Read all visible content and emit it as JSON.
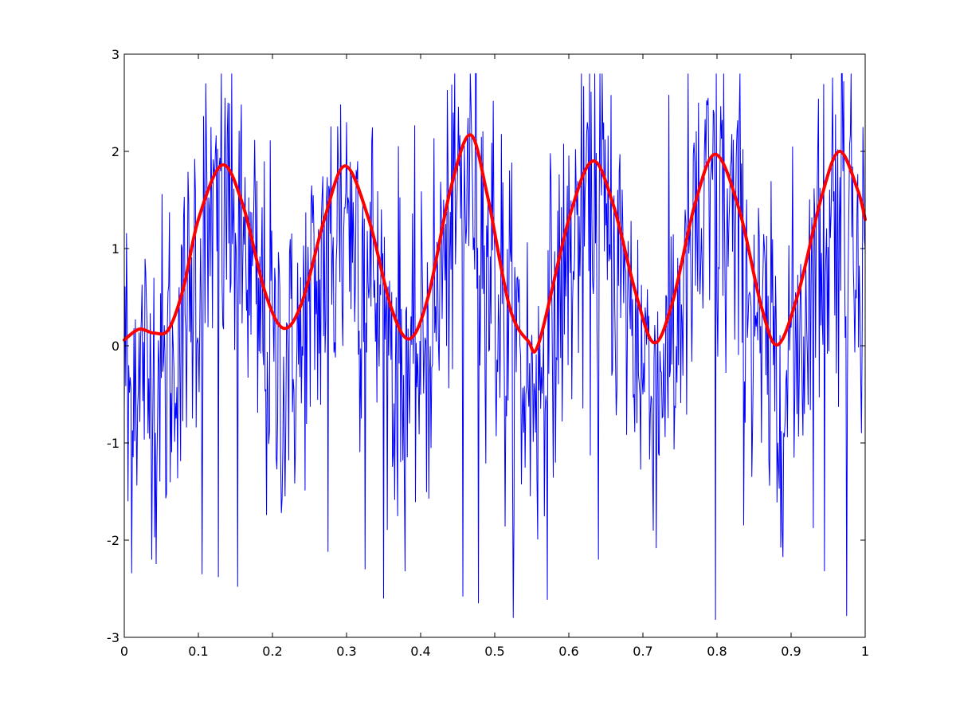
{
  "chart_data": {
    "type": "line",
    "title": "",
    "xlabel": "",
    "ylabel": "",
    "xlim": [
      0,
      1
    ],
    "ylim": [
      -3,
      3
    ],
    "x_ticks": [
      "0",
      "0.1",
      "0.2",
      "0.3",
      "0.4",
      "0.5",
      "0.6",
      "0.7",
      "0.8",
      "0.9",
      "1"
    ],
    "y_ticks": [
      "-3",
      "-2",
      "-1",
      "0",
      "1",
      "2",
      "3"
    ],
    "grid": false,
    "legend": "none",
    "series": [
      {
        "color": "#0000ff",
        "line_width": "thin",
        "style": "noisy signal, approx. 1000 samples",
        "x_range": [
          0,
          1
        ],
        "approx_range": [
          -2.8,
          2.8
        ],
        "envelope_peaks": [
          {
            "x": 0.005,
            "y": -1.6
          },
          {
            "x": 0.11,
            "y": 2.7
          },
          {
            "x": 0.105,
            "y": -2.35
          },
          {
            "x": 0.127,
            "y": -2.38
          },
          {
            "x": 0.14,
            "y": 2.5
          },
          {
            "x": 0.153,
            "y": -2.48
          },
          {
            "x": 0.275,
            "y": -2.12
          },
          {
            "x": 0.3,
            "y": 2.3
          },
          {
            "x": 0.325,
            "y": -2.3
          },
          {
            "x": 0.457,
            "y": -2.58
          },
          {
            "x": 0.468,
            "y": 2.48
          },
          {
            "x": 0.478,
            "y": -2.65
          },
          {
            "x": 0.625,
            "y": 2.3
          },
          {
            "x": 0.64,
            "y": -2.2
          },
          {
            "x": 0.642,
            "y": 2.8
          },
          {
            "x": 0.783,
            "y": 2.0
          },
          {
            "x": 0.798,
            "y": -2.82
          },
          {
            "x": 0.83,
            "y": 2.35
          },
          {
            "x": 0.96,
            "y": 2.38
          },
          {
            "x": 0.945,
            "y": -2.32
          },
          {
            "x": 0.975,
            "y": -2.78
          },
          {
            "x": 0.997,
            "y": 2.25
          }
        ]
      },
      {
        "color": "#ff0000",
        "line_width": "thick",
        "style": "smooth curve",
        "x": [
          0,
          0.02,
          0.04,
          0.06,
          0.08,
          0.1,
          0.132,
          0.16,
          0.19,
          0.215,
          0.24,
          0.27,
          0.298,
          0.33,
          0.36,
          0.385,
          0.41,
          0.44,
          0.467,
          0.49,
          0.52,
          0.545,
          0.56,
          0.6,
          0.632,
          0.66,
          0.69,
          0.715,
          0.74,
          0.77,
          0.798,
          0.83,
          0.86,
          0.882,
          0.91,
          0.94,
          0.965,
          0.99,
          1.0
        ],
        "y": [
          0.06,
          0.17,
          0.13,
          0.17,
          0.6,
          1.3,
          1.86,
          1.45,
          0.55,
          0.18,
          0.45,
          1.3,
          1.85,
          1.3,
          0.4,
          0.07,
          0.5,
          1.6,
          2.17,
          1.55,
          0.4,
          0.05,
          0.04,
          1.3,
          1.9,
          1.45,
          0.55,
          0.03,
          0.45,
          1.45,
          1.97,
          1.4,
          0.4,
          0.01,
          0.55,
          1.5,
          2.0,
          1.6,
          1.3
        ]
      }
    ]
  }
}
